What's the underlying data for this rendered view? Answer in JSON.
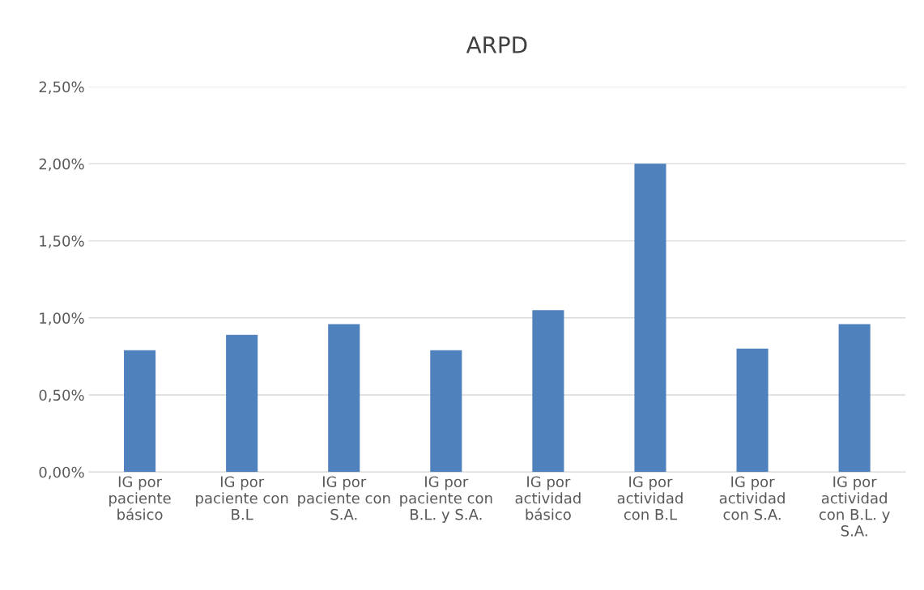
{
  "chart_data": {
    "type": "bar",
    "title": "ARPD",
    "categories": [
      "IG por\npaciente\nbásico",
      "IG por\npaciente con\nB.L",
      "IG por\npaciente con\nS.A.",
      "IG por\npaciente con\nB.L. y S.A.",
      "IG por\nactividad\nbásico",
      "IG por\nactividad\ncon B.L",
      "IG por\nactividad\ncon S.A.",
      "IG por\nactividad\ncon B.L. y\nS.A."
    ],
    "values": [
      0.79,
      0.89,
      0.96,
      0.79,
      1.05,
      2.0,
      0.8,
      0.96
    ],
    "color": "#4f81bd",
    "ylim": [
      0,
      2.5
    ],
    "yticks": [
      {
        "value": 0,
        "label": "0,00%"
      },
      {
        "value": 0.5,
        "label": "0,50%"
      },
      {
        "value": 1.0,
        "label": "1,00%"
      },
      {
        "value": 1.5,
        "label": "1,50%"
      },
      {
        "value": 2.0,
        "label": "2,00%"
      },
      {
        "value": 2.5,
        "label": "2,50%"
      }
    ],
    "grid": "y",
    "legend": false
  }
}
